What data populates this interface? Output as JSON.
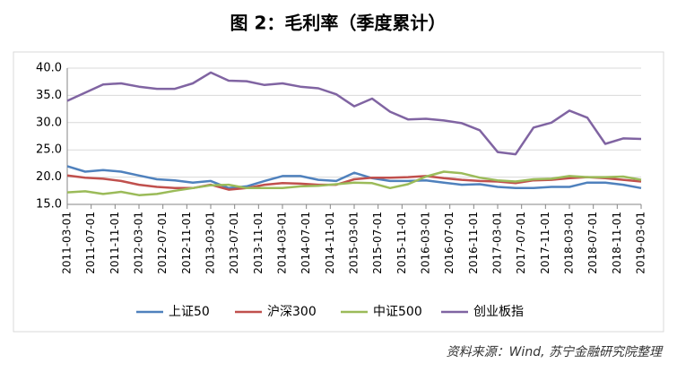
{
  "chart_data": {
    "type": "line",
    "title": "图 2：毛利率（季度累计）",
    "source": "资料来源：Wind, 苏宁金融研究院整理",
    "x": [
      "2011-03-01",
      "2011-06-01",
      "2011-09-01",
      "2011-12-01",
      "2012-03-01",
      "2012-06-01",
      "2012-09-01",
      "2012-12-01",
      "2013-03-01",
      "2013-06-01",
      "2013-09-01",
      "2013-12-01",
      "2014-03-01",
      "2014-06-01",
      "2014-09-01",
      "2014-12-01",
      "2015-03-01",
      "2015-06-01",
      "2015-09-01",
      "2015-12-01",
      "2016-03-01",
      "2016-06-01",
      "2016-09-01",
      "2016-12-01",
      "2017-03-01",
      "2017-06-01",
      "2017-09-01",
      "2017-12-01",
      "2018-03-01",
      "2018-06-01",
      "2018-09-01",
      "2018-12-01",
      "2019-03-01"
    ],
    "xticks": [
      "2011-03-01",
      "2011-07-01",
      "2011-11-01",
      "2012-03-01",
      "2012-07-01",
      "2012-11-01",
      "2013-03-01",
      "2013-07-01",
      "2013-11-01",
      "2014-03-01",
      "2014-07-01",
      "2014-11-01",
      "2015-03-01",
      "2015-07-01",
      "2015-11-01",
      "2016-03-01",
      "2016-07-01",
      "2016-11-01",
      "2017-03-01",
      "2017-07-01",
      "2017-11-01",
      "2018-03-01",
      "2018-07-01",
      "2018-11-01",
      "2019-03-01"
    ],
    "ylim": [
      15,
      40
    ],
    "yticks": [
      {
        "value": 15,
        "label": "15.0"
      },
      {
        "value": 20,
        "label": "20.0"
      },
      {
        "value": 25,
        "label": "25.0"
      },
      {
        "value": 30,
        "label": "30.0"
      },
      {
        "value": 35,
        "label": "35.0"
      },
      {
        "value": 40,
        "label": "40.0"
      }
    ],
    "grid": true,
    "legend": "bottom",
    "series": [
      {
        "name": "上证50",
        "color": "#4f81bd",
        "values": [
          22.0,
          21.0,
          21.3,
          21.0,
          20.3,
          19.6,
          19.4,
          19.0,
          19.3,
          18.0,
          18.3,
          19.3,
          20.2,
          20.2,
          19.5,
          19.3,
          20.8,
          19.8,
          19.3,
          19.3,
          19.4,
          19.0,
          18.6,
          18.7,
          18.2,
          18.0,
          18.0,
          18.2,
          18.2,
          19.0,
          19.0,
          18.6,
          18.0
        ]
      },
      {
        "name": "沪深300",
        "color": "#c0504d",
        "values": [
          20.3,
          19.9,
          19.7,
          19.3,
          18.6,
          18.2,
          18.0,
          18.0,
          18.6,
          17.7,
          18.0,
          18.6,
          18.9,
          18.8,
          18.6,
          18.6,
          19.6,
          19.9,
          19.9,
          20.0,
          20.2,
          19.8,
          19.5,
          19.3,
          19.2,
          18.9,
          19.4,
          19.5,
          19.8,
          20.0,
          19.8,
          19.5,
          19.2
        ]
      },
      {
        "name": "中证500",
        "color": "#9bbb59",
        "values": [
          17.2,
          17.4,
          16.9,
          17.3,
          16.7,
          16.9,
          17.5,
          18.0,
          18.5,
          18.6,
          18.0,
          18.0,
          18.0,
          18.3,
          18.4,
          18.7,
          19.0,
          18.9,
          18.0,
          18.7,
          20.1,
          21.0,
          20.7,
          19.9,
          19.4,
          19.2,
          19.6,
          19.7,
          20.2,
          20.0,
          20.0,
          20.1,
          19.5
        ]
      },
      {
        "name": "创业板指",
        "color": "#8064a2",
        "values": [
          34.0,
          35.5,
          37.0,
          37.2,
          36.6,
          36.2,
          36.2,
          37.2,
          39.2,
          37.7,
          37.6,
          36.9,
          37.2,
          36.6,
          36.3,
          35.2,
          33.0,
          34.4,
          32.0,
          30.6,
          30.7,
          30.4,
          29.9,
          28.6,
          24.6,
          24.2,
          29.1,
          30.0,
          32.2,
          30.9,
          26.1,
          27.1,
          27.0
        ]
      }
    ]
  }
}
